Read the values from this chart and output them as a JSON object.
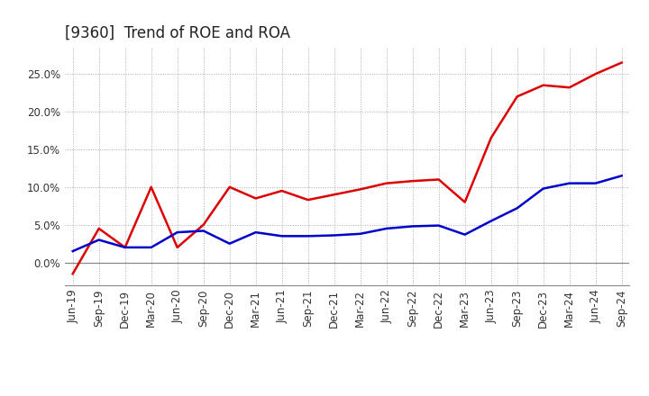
{
  "title": "[9360]  Trend of ROE and ROA",
  "x_labels": [
    "Jun-19",
    "Sep-19",
    "Dec-19",
    "Mar-20",
    "Jun-20",
    "Sep-20",
    "Dec-20",
    "Mar-21",
    "Jun-21",
    "Sep-21",
    "Dec-21",
    "Mar-22",
    "Jun-22",
    "Sep-22",
    "Dec-22",
    "Mar-23",
    "Jun-23",
    "Sep-23",
    "Dec-23",
    "Mar-24",
    "Jun-24",
    "Sep-24"
  ],
  "roe": [
    -1.5,
    4.5,
    2.0,
    10.0,
    2.0,
    5.0,
    10.0,
    8.5,
    9.5,
    8.3,
    9.0,
    9.7,
    10.5,
    10.8,
    11.0,
    8.0,
    16.5,
    22.0,
    23.5,
    23.2,
    25.0,
    26.5
  ],
  "roa": [
    1.5,
    3.0,
    2.0,
    2.0,
    4.0,
    4.2,
    2.5,
    4.0,
    3.5,
    3.5,
    3.6,
    3.8,
    4.5,
    4.8,
    4.9,
    3.7,
    5.5,
    7.2,
    9.8,
    10.5,
    10.5,
    11.5
  ],
  "roe_color": "#dd0000",
  "roa_color": "#0000cc",
  "background_color": "#ffffff",
  "plot_bg_color": "#ffffff",
  "grid_color": "#aaaaaa",
  "ylim": [
    -3.0,
    28.5
  ],
  "yticks": [
    0.0,
    5.0,
    10.0,
    15.0,
    20.0,
    25.0
  ],
  "title_fontsize": 12,
  "legend_fontsize": 10,
  "tick_fontsize": 8.5
}
